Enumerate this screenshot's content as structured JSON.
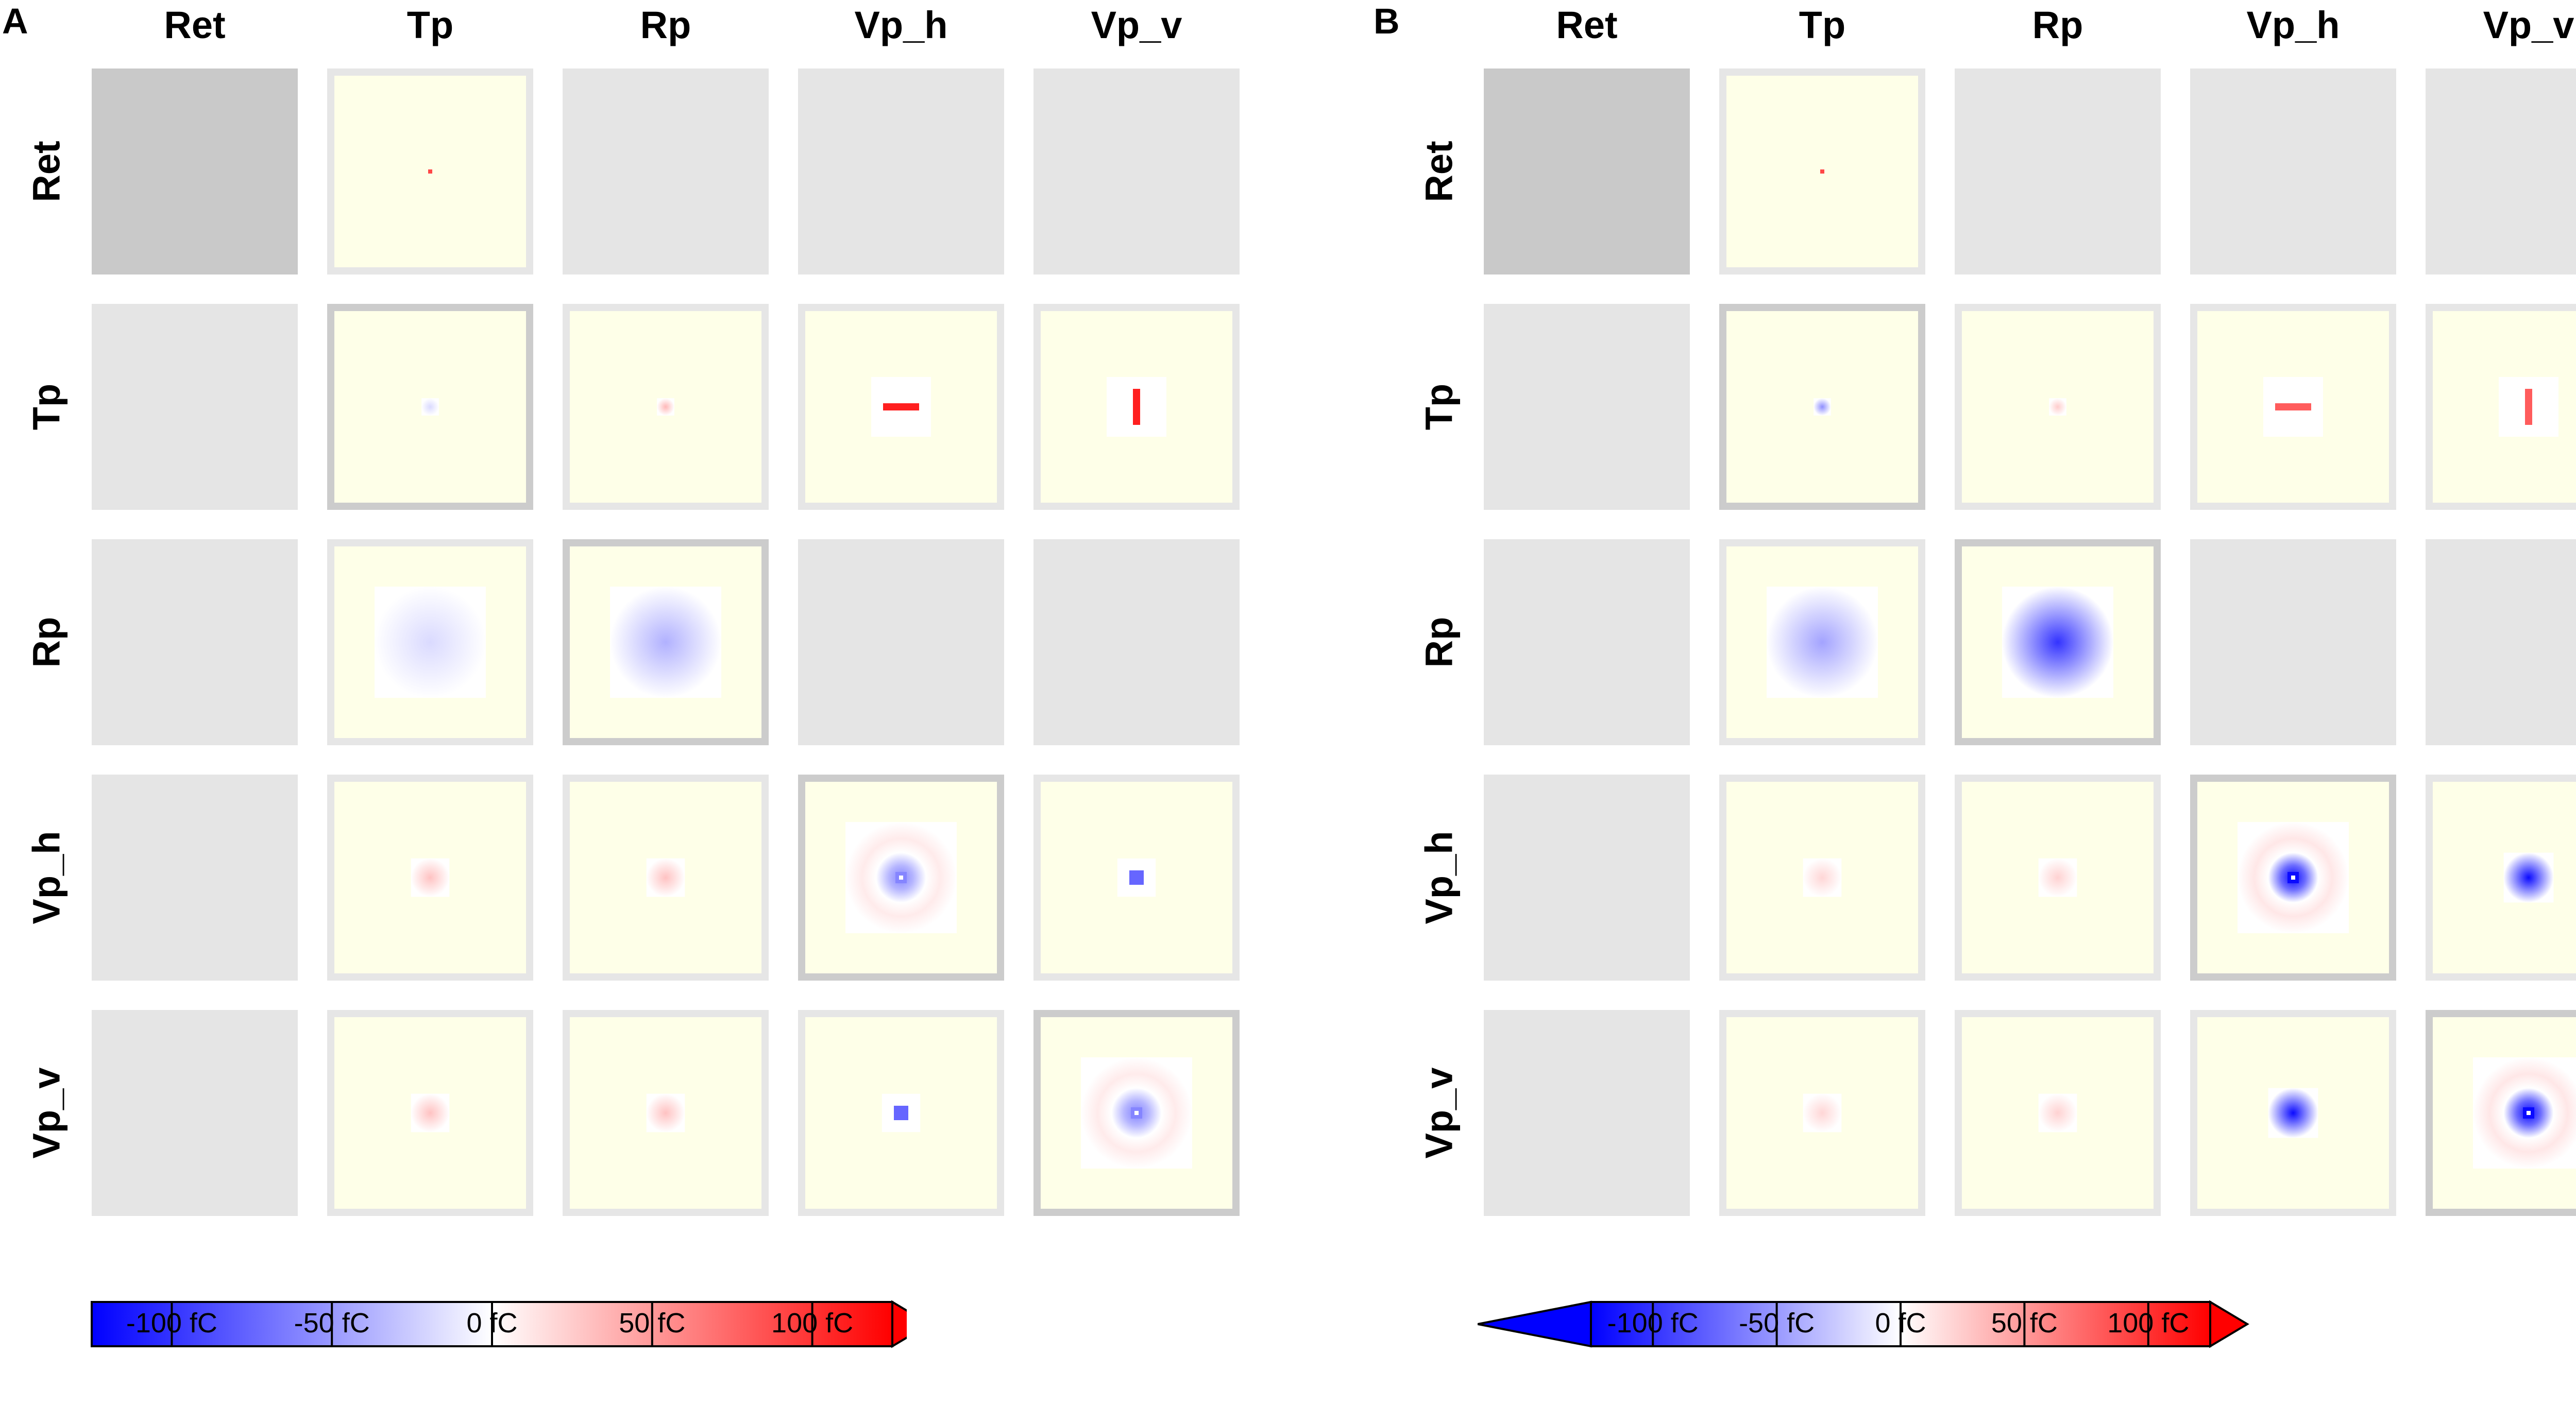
{
  "panels": [
    {
      "letter": "A",
      "columns": [
        "Ret",
        "Tp",
        "Rp",
        "Vp_h",
        "Vp_v"
      ],
      "rows": [
        "Ret",
        "Tp",
        "Rp",
        "Vp_h",
        "Vp_v"
      ],
      "colorbar": {
        "ticks": [
          "-100 fC",
          "-50 fC",
          "0 fC",
          "50 fC",
          "100 fC"
        ],
        "range_fC": [
          -125,
          125
        ],
        "extend_min": false,
        "extend_max": true
      },
      "cells": [
        [
          {
            "type": "diagonal-gray"
          },
          {
            "type": "dot",
            "value": 90
          },
          {
            "type": "none"
          },
          {
            "type": "none"
          },
          {
            "type": "none"
          }
        ],
        [
          {
            "type": "none"
          },
          {
            "type": "blob",
            "value": -18,
            "size": 0.09,
            "self": true
          },
          {
            "type": "blob",
            "value": 35,
            "size": 0.09
          },
          {
            "type": "bar-horizontal",
            "value": 110
          },
          {
            "type": "bar-vertical",
            "value": 110
          }
        ],
        [
          {
            "type": "none"
          },
          {
            "type": "blob",
            "value": -18,
            "size": 0.58
          },
          {
            "type": "blob",
            "value": -38,
            "size": 0.58,
            "self": true
          },
          {
            "type": "none"
          },
          {
            "type": "none"
          }
        ],
        [
          {
            "type": "none"
          },
          {
            "type": "blob",
            "value": 30,
            "size": 0.2
          },
          {
            "type": "blob",
            "value": 30,
            "size": 0.2
          },
          {
            "type": "center-surround",
            "center": -60,
            "surround": 10,
            "self": true
          },
          {
            "type": "square",
            "value": -75
          }
        ],
        [
          {
            "type": "none"
          },
          {
            "type": "blob",
            "value": 30,
            "size": 0.2
          },
          {
            "type": "blob",
            "value": 30,
            "size": 0.2
          },
          {
            "type": "square",
            "value": -75
          },
          {
            "type": "center-surround",
            "center": -60,
            "surround": 10,
            "self": true
          }
        ]
      ]
    },
    {
      "letter": "B",
      "columns": [
        "Ret",
        "Tp",
        "Rp",
        "Vp_h",
        "Vp_v"
      ],
      "rows": [
        "Ret",
        "Tp",
        "Rp",
        "Vp_h",
        "Vp_v"
      ],
      "colorbar": {
        "ticks": [
          "-100 fC",
          "-50 fC",
          "0 fC",
          "50 fC",
          "100 fC"
        ],
        "range_fC": [
          -125,
          125
        ],
        "extend_min": true,
        "extend_max": true
      },
      "cells": [
        [
          {
            "type": "diagonal-gray"
          },
          {
            "type": "dot",
            "value": 90
          },
          {
            "type": "none"
          },
          {
            "type": "none"
          },
          {
            "type": "none"
          }
        ],
        [
          {
            "type": "none"
          },
          {
            "type": "blob",
            "value": -55,
            "size": 0.09,
            "self": true
          },
          {
            "type": "blob",
            "value": 25,
            "size": 0.09
          },
          {
            "type": "bar-horizontal",
            "value": 80
          },
          {
            "type": "bar-vertical",
            "value": 80
          }
        ],
        [
          {
            "type": "none"
          },
          {
            "type": "blob",
            "value": -45,
            "size": 0.58
          },
          {
            "type": "blob",
            "value": -100,
            "size": 0.58,
            "self": true
          },
          {
            "type": "none"
          },
          {
            "type": "none"
          }
        ],
        [
          {
            "type": "none"
          },
          {
            "type": "blob",
            "value": 20,
            "size": 0.2
          },
          {
            "type": "blob",
            "value": 22,
            "size": 0.2
          },
          {
            "type": "center-surround",
            "center": -120,
            "surround": 12,
            "self": true
          },
          {
            "type": "blob",
            "value": -120,
            "size": 0.26
          }
        ],
        [
          {
            "type": "none"
          },
          {
            "type": "blob",
            "value": 20,
            "size": 0.2
          },
          {
            "type": "blob",
            "value": 22,
            "size": 0.2
          },
          {
            "type": "blob",
            "value": -120,
            "size": 0.26
          },
          {
            "type": "center-surround",
            "center": -120,
            "surround": 12,
            "self": true
          }
        ]
      ]
    }
  ]
}
